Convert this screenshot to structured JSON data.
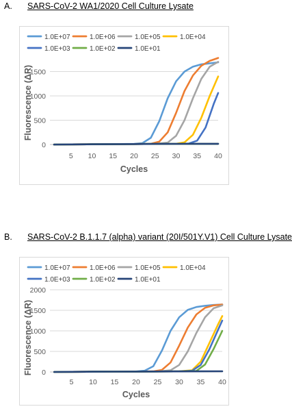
{
  "panels": [
    {
      "letter": "A.",
      "title": "SARS-CoV-2 WA1/2020 Cell Culture Lysate"
    },
    {
      "letter": "B.",
      "title": "SARS-CoV-2 B.1.1.7  (alpha) variant  (20I/501Y.V1) Cell Culture Lysate"
    }
  ],
  "colors": {
    "1.0E+07": "#5b9bd5",
    "1.0E+06": "#ed7d31",
    "1.0E+05": "#a5a5a5",
    "1.0E+04": "#ffc000",
    "1.0E+03": "#4472c4",
    "1.0E+02": "#70ad47",
    "1.0E+01": "#264478"
  },
  "chart_data": [
    {
      "type": "line",
      "xlabel": "Cycles",
      "ylabel": "Fluorescence (ΔR)",
      "xlim": [
        0,
        40
      ],
      "ylim": [
        0,
        2000
      ],
      "xticks": [
        "5",
        "10",
        "15",
        "20",
        "25",
        "30",
        "35",
        "40"
      ],
      "yticks": [
        "0",
        "500",
        "1000",
        "1500"
      ],
      "grid": true,
      "legend": "top",
      "series": [
        {
          "name": "1.0E+07",
          "x": [
            1,
            5,
            10,
            15,
            20,
            22,
            24,
            26,
            28,
            30,
            32,
            34,
            36,
            38,
            40
          ],
          "y": [
            0,
            3,
            6,
            8,
            12,
            30,
            140,
            480,
            950,
            1300,
            1500,
            1600,
            1650,
            1670,
            1690
          ]
        },
        {
          "name": "1.0E+06",
          "x": [
            1,
            5,
            10,
            15,
            20,
            24,
            26,
            28,
            30,
            32,
            34,
            36,
            38,
            40
          ],
          "y": [
            0,
            3,
            6,
            8,
            10,
            15,
            60,
            250,
            650,
            1100,
            1420,
            1620,
            1720,
            1780
          ]
        },
        {
          "name": "1.0E+05",
          "x": [
            1,
            5,
            10,
            15,
            20,
            25,
            28,
            30,
            32,
            34,
            36,
            38,
            40
          ],
          "y": [
            0,
            3,
            6,
            8,
            10,
            12,
            40,
            180,
            500,
            950,
            1350,
            1600,
            1700
          ]
        },
        {
          "name": "1.0E+04",
          "x": [
            1,
            5,
            10,
            15,
            20,
            25,
            30,
            32,
            34,
            36,
            38,
            40
          ],
          "y": [
            0,
            3,
            6,
            8,
            10,
            12,
            15,
            45,
            200,
            550,
            1000,
            1400
          ]
        },
        {
          "name": "1.0E+03",
          "x": [
            1,
            5,
            10,
            15,
            20,
            25,
            30,
            33,
            35,
            37,
            39,
            40
          ],
          "y": [
            0,
            3,
            6,
            8,
            10,
            12,
            14,
            20,
            80,
            350,
            850,
            1060
          ]
        },
        {
          "name": "1.0E+02",
          "x": [
            1,
            5,
            10,
            15,
            20,
            25,
            30,
            35,
            40
          ],
          "y": [
            0,
            3,
            6,
            8,
            10,
            12,
            14,
            15,
            16
          ]
        },
        {
          "name": "1.0E+01",
          "x": [
            1,
            5,
            10,
            15,
            20,
            25,
            30,
            35,
            40
          ],
          "y": [
            0,
            3,
            6,
            8,
            10,
            12,
            14,
            15,
            16
          ]
        }
      ]
    },
    {
      "type": "line",
      "xlabel": "Cycles",
      "ylabel": "Fluorescence (ΔR)",
      "xlim": [
        0,
        40
      ],
      "ylim": [
        0,
        2000
      ],
      "xticks": [
        "5",
        "10",
        "15",
        "20",
        "25",
        "30",
        "35",
        "40"
      ],
      "yticks": [
        "0",
        "500",
        "1000",
        "1500",
        "2000"
      ],
      "grid": true,
      "legend": "top",
      "series": [
        {
          "name": "1.0E+07",
          "x": [
            1,
            5,
            10,
            15,
            20,
            22,
            24,
            26,
            28,
            30,
            32,
            34,
            36,
            38,
            40
          ],
          "y": [
            0,
            3,
            6,
            8,
            12,
            30,
            140,
            520,
            1000,
            1330,
            1510,
            1580,
            1610,
            1630,
            1640
          ]
        },
        {
          "name": "1.0E+06",
          "x": [
            1,
            5,
            10,
            15,
            20,
            24,
            26,
            28,
            30,
            32,
            34,
            36,
            38,
            40
          ],
          "y": [
            0,
            3,
            6,
            8,
            10,
            15,
            50,
            230,
            640,
            1080,
            1400,
            1560,
            1620,
            1640
          ]
        },
        {
          "name": "1.0E+05",
          "x": [
            1,
            5,
            10,
            15,
            20,
            25,
            28,
            30,
            32,
            34,
            36,
            38,
            40
          ],
          "y": [
            0,
            3,
            6,
            8,
            10,
            12,
            40,
            170,
            500,
            950,
            1330,
            1550,
            1620
          ]
        },
        {
          "name": "1.0E+04",
          "x": [
            1,
            5,
            10,
            15,
            20,
            25,
            30,
            33,
            35,
            37,
            39,
            40
          ],
          "y": [
            0,
            3,
            6,
            8,
            10,
            12,
            15,
            40,
            250,
            700,
            1150,
            1360
          ]
        },
        {
          "name": "1.0E+03",
          "x": [
            1,
            5,
            10,
            15,
            20,
            25,
            30,
            33,
            35,
            37,
            39,
            40
          ],
          "y": [
            0,
            3,
            6,
            8,
            10,
            12,
            14,
            30,
            170,
            550,
            1020,
            1250
          ]
        },
        {
          "name": "1.0E+02",
          "x": [
            1,
            5,
            10,
            15,
            20,
            25,
            30,
            34,
            36,
            38,
            40
          ],
          "y": [
            0,
            3,
            6,
            8,
            10,
            12,
            14,
            25,
            180,
            560,
            1000
          ]
        },
        {
          "name": "1.0E+01",
          "x": [
            1,
            5,
            10,
            15,
            20,
            25,
            30,
            35,
            40
          ],
          "y": [
            0,
            3,
            6,
            8,
            10,
            12,
            14,
            15,
            16
          ]
        }
      ]
    }
  ]
}
